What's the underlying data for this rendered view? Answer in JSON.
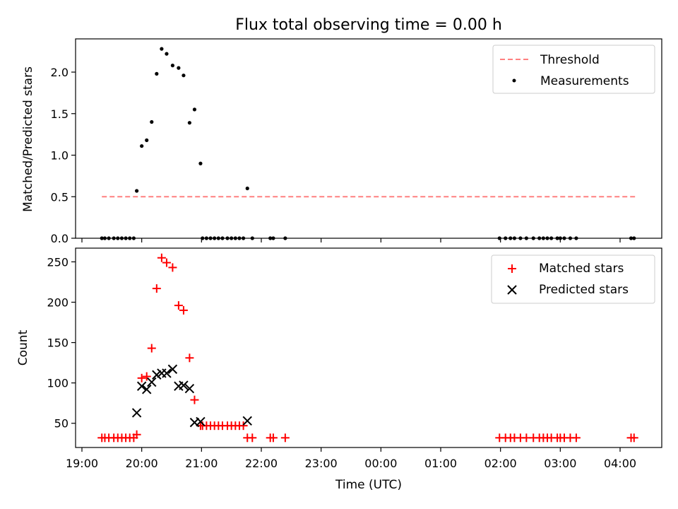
{
  "chart_data": [
    {
      "type": "scatter",
      "title": "Flux total observing time = 0.00 h",
      "xlabel": "",
      "ylabel": "Matched/Predicted stars",
      "xlim": [
        "19:00",
        "04:45"
      ],
      "ylim": [
        0,
        2.4
      ],
      "yticks": [
        "0.0",
        "0.5",
        "1.0",
        "1.5",
        "2.0"
      ],
      "legend_position": "top-right",
      "grid": false,
      "threshold": {
        "name": "Threshold",
        "value": 0.5,
        "x_start": "19:20",
        "x_end": "04:15",
        "color": "#ff8080",
        "style": "dashed"
      },
      "series": [
        {
          "name": "Measurements",
          "marker": "dot",
          "color": "#000000",
          "x": [
            "19:20",
            "19:23",
            "19:27",
            "19:32",
            "19:36",
            "19:40",
            "19:44",
            "19:48",
            "19:52",
            "19:55",
            "20:00",
            "20:05",
            "20:10",
            "20:15",
            "20:20",
            "20:25",
            "20:31",
            "20:37",
            "20:42",
            "20:48",
            "20:53",
            "20:59",
            "21:01",
            "21:05",
            "21:09",
            "21:13",
            "21:17",
            "21:21",
            "21:26",
            "21:30",
            "21:34",
            "21:38",
            "21:42",
            "21:46",
            "21:51",
            "22:09",
            "22:12",
            "22:24",
            "01:59",
            "02:05",
            "02:10",
            "02:14",
            "02:20",
            "02:26",
            "02:33",
            "02:39",
            "02:43",
            "02:47",
            "02:51",
            "02:57",
            "03:00",
            "03:04",
            "03:10",
            "03:16",
            "04:11",
            "04:14"
          ],
          "y": [
            0,
            0,
            0,
            0,
            0,
            0,
            0,
            0,
            0,
            0.57,
            1.11,
            1.18,
            1.4,
            1.98,
            2.28,
            2.22,
            2.08,
            2.05,
            1.96,
            1.39,
            1.55,
            0.9,
            0,
            0,
            0,
            0,
            0,
            0,
            0,
            0,
            0,
            0,
            0,
            0.6,
            0,
            0,
            0,
            0,
            0,
            0,
            0,
            0,
            0,
            0,
            0,
            0,
            0,
            0,
            0,
            0,
            0,
            0,
            0,
            0,
            0,
            0
          ]
        }
      ]
    },
    {
      "type": "scatter",
      "title": "",
      "xlabel": "Time (UTC)",
      "ylabel": "Count",
      "xlim": [
        "19:00",
        "04:45"
      ],
      "ylim": [
        20,
        267
      ],
      "yticks": [
        "50",
        "100",
        "150",
        "200",
        "250"
      ],
      "xticks": [
        "19:00",
        "20:00",
        "21:00",
        "22:00",
        "23:00",
        "00:00",
        "01:00",
        "02:00",
        "03:00",
        "04:00"
      ],
      "legend_position": "top-right",
      "grid": false,
      "series": [
        {
          "name": "Matched stars",
          "marker": "plus",
          "color": "#ff0000",
          "x": [
            "19:20",
            "19:23",
            "19:27",
            "19:32",
            "19:36",
            "19:40",
            "19:44",
            "19:48",
            "19:52",
            "19:55",
            "20:00",
            "20:05",
            "20:10",
            "20:15",
            "20:20",
            "20:25",
            "20:31",
            "20:37",
            "20:42",
            "20:48",
            "20:53",
            "20:59",
            "21:01",
            "21:05",
            "21:09",
            "21:13",
            "21:17",
            "21:21",
            "21:26",
            "21:30",
            "21:34",
            "21:38",
            "21:42",
            "21:46",
            "21:51",
            "22:09",
            "22:12",
            "22:24",
            "01:59",
            "02:05",
            "02:10",
            "02:14",
            "02:20",
            "02:26",
            "02:33",
            "02:39",
            "02:43",
            "02:47",
            "02:51",
            "02:57",
            "03:00",
            "03:04",
            "03:10",
            "03:16",
            "04:11",
            "04:14"
          ],
          "y": [
            32,
            32,
            32,
            32,
            32,
            32,
            32,
            32,
            32,
            36,
            106,
            108,
            143,
            217,
            255,
            249,
            243,
            196,
            190,
            131,
            79,
            47,
            47,
            47,
            47,
            47,
            47,
            47,
            47,
            47,
            47,
            47,
            47,
            32,
            32,
            32,
            32,
            32,
            32,
            32,
            32,
            32,
            32,
            32,
            32,
            32,
            32,
            32,
            32,
            32,
            32,
            32,
            32,
            32,
            32,
            32
          ]
        },
        {
          "name": "Predicted stars",
          "marker": "x",
          "color": "#000000",
          "x": [
            "19:55",
            "20:00",
            "20:05",
            "20:10",
            "20:15",
            "20:20",
            "20:25",
            "20:31",
            "20:37",
            "20:42",
            "20:48",
            "20:53",
            "20:59",
            "21:46"
          ],
          "y": [
            63,
            96,
            92,
            101,
            110,
            112,
            112,
            117,
            96,
            97,
            93,
            51,
            52,
            53
          ]
        }
      ]
    }
  ]
}
